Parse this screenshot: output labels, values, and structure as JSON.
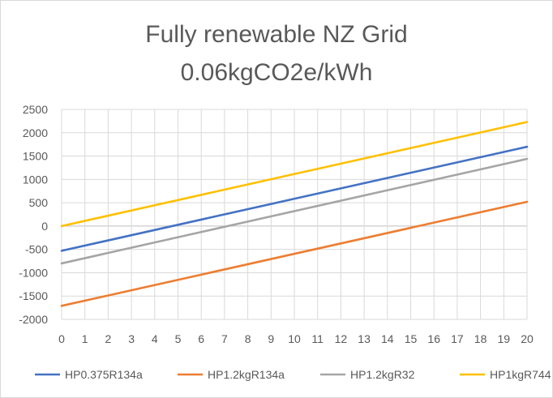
{
  "chart_data": {
    "type": "line",
    "title_line1": "Fully renewable NZ Grid",
    "title_line2": "0.06kgCO2e/kWh",
    "xlabel": "",
    "ylabel": "",
    "x": [
      0,
      1,
      2,
      3,
      4,
      5,
      6,
      7,
      8,
      9,
      10,
      11,
      12,
      13,
      14,
      15,
      16,
      17,
      18,
      19,
      20
    ],
    "xlim": [
      0,
      20
    ],
    "ylim": [
      -2000,
      2500
    ],
    "yticks": [
      2500,
      2000,
      1500,
      1000,
      500,
      0,
      -500,
      -1000,
      -1500,
      -2000
    ],
    "grid": true,
    "legend_position": "bottom",
    "series": [
      {
        "name": "HP0.375R134a",
        "color": "#4472C4",
        "start": -530,
        "end": 1700
      },
      {
        "name": "HP1.2kgR134a",
        "color": "#ED7D31",
        "start": -1710,
        "end": 520
      },
      {
        "name": "HP1.2kgR32",
        "color": "#A5A5A5",
        "start": -800,
        "end": 1440
      },
      {
        "name": "HP1kgR744",
        "color": "#FFC000",
        "start": 0,
        "end": 2230
      }
    ]
  }
}
